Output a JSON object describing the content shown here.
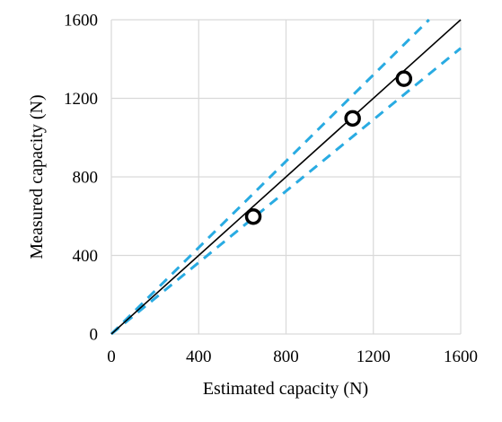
{
  "chart_data": {
    "type": "scatter",
    "title": "",
    "xlabel": "Estimated capacity (N)",
    "ylabel": "Measured capacity (N)",
    "xlim": [
      0,
      1600
    ],
    "ylim": [
      0,
      1600
    ],
    "x_ticks": [
      0,
      400,
      800,
      1200,
      1600
    ],
    "y_ticks": [
      0,
      400,
      800,
      1200,
      1600
    ],
    "x_tick_labels": [
      "0",
      "400",
      "800",
      "1200",
      "1600"
    ],
    "y_tick_labels": [
      "0",
      "400",
      "800",
      "1200",
      "1600"
    ],
    "grid": true,
    "legend": "none",
    "series": [
      {
        "kind": "points",
        "marker": "open-circle",
        "color": "#000000",
        "x": [
          650,
          1105,
          1340
        ],
        "y": [
          598,
          1098,
          1300
        ]
      },
      {
        "kind": "line",
        "style": "solid",
        "color": "#000000",
        "x": [
          0,
          1600
        ],
        "y": [
          0,
          1600
        ]
      },
      {
        "kind": "line",
        "style": "dashed",
        "color": "#29abe2",
        "x": [
          0,
          1455
        ],
        "y": [
          0,
          1600
        ]
      },
      {
        "kind": "line",
        "style": "dashed",
        "color": "#29abe2",
        "x": [
          0,
          1600
        ],
        "y": [
          0,
          1455
        ]
      }
    ]
  }
}
